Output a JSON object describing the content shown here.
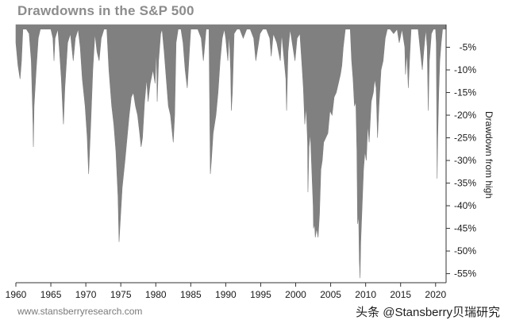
{
  "chart_data": {
    "type": "area",
    "title": "Drawdowns in the S&P 500",
    "ylabel": "Drawdown from high",
    "xlabel": "",
    "xlim": [
      1960,
      2021.5
    ],
    "ylim": [
      -57,
      0
    ],
    "x_ticks": [
      1960,
      1965,
      1970,
      1975,
      1980,
      1985,
      1990,
      1995,
      2000,
      2005,
      2010,
      2015,
      2020
    ],
    "y_ticks": [
      -5,
      -10,
      -15,
      -20,
      -25,
      -30,
      -35,
      -40,
      -45,
      -50,
      -55
    ],
    "y_tick_format": "{v}%",
    "grid": false,
    "fill_color": "#808080",
    "series": [
      {
        "points": [
          [
            1960.0,
            -4
          ],
          [
            1960.3,
            -9
          ],
          [
            1960.6,
            -12
          ],
          [
            1960.8,
            -8
          ],
          [
            1961.0,
            -1
          ],
          [
            1961.5,
            -1
          ],
          [
            1961.9,
            -2
          ],
          [
            1962.2,
            -8
          ],
          [
            1962.45,
            -22
          ],
          [
            1962.5,
            -27
          ],
          [
            1962.6,
            -18
          ],
          [
            1962.9,
            -10
          ],
          [
            1963.2,
            -3
          ],
          [
            1963.5,
            -1
          ],
          [
            1964.0,
            -1
          ],
          [
            1965.0,
            -1
          ],
          [
            1965.3,
            -3
          ],
          [
            1965.45,
            -8
          ],
          [
            1965.6,
            -3
          ],
          [
            1966.0,
            -1
          ],
          [
            1966.2,
            -5
          ],
          [
            1966.5,
            -12
          ],
          [
            1966.8,
            -22
          ],
          [
            1967.0,
            -14
          ],
          [
            1967.4,
            -4
          ],
          [
            1967.8,
            -2
          ],
          [
            1968.2,
            -8
          ],
          [
            1968.5,
            -3
          ],
          [
            1968.9,
            -1
          ],
          [
            1969.2,
            -5
          ],
          [
            1969.5,
            -12
          ],
          [
            1969.9,
            -18
          ],
          [
            1970.2,
            -25
          ],
          [
            1970.4,
            -33
          ],
          [
            1970.7,
            -22
          ],
          [
            1971.0,
            -10
          ],
          [
            1971.3,
            -2
          ],
          [
            1971.6,
            -6
          ],
          [
            1971.9,
            -8
          ],
          [
            1972.2,
            -3
          ],
          [
            1972.6,
            -1
          ],
          [
            1973.0,
            -1
          ],
          [
            1973.3,
            -10
          ],
          [
            1973.7,
            -18
          ],
          [
            1974.0,
            -22
          ],
          [
            1974.3,
            -28
          ],
          [
            1974.6,
            -38
          ],
          [
            1974.75,
            -48
          ],
          [
            1974.9,
            -44
          ],
          [
            1975.2,
            -36
          ],
          [
            1975.6,
            -30
          ],
          [
            1975.9,
            -25
          ],
          [
            1976.2,
            -20
          ],
          [
            1976.5,
            -16
          ],
          [
            1976.8,
            -15
          ],
          [
            1977.1,
            -18
          ],
          [
            1977.4,
            -20
          ],
          [
            1977.7,
            -24
          ],
          [
            1977.9,
            -27
          ],
          [
            1978.1,
            -25
          ],
          [
            1978.4,
            -17
          ],
          [
            1978.7,
            -12
          ],
          [
            1978.9,
            -17
          ],
          [
            1979.2,
            -13
          ],
          [
            1979.6,
            -10
          ],
          [
            1979.9,
            -13
          ],
          [
            1980.1,
            -5
          ],
          [
            1980.2,
            -17
          ],
          [
            1980.4,
            -8
          ],
          [
            1980.7,
            -2
          ],
          [
            1980.9,
            -1
          ],
          [
            1981.2,
            -6
          ],
          [
            1981.5,
            -12
          ],
          [
            1981.8,
            -18
          ],
          [
            1982.1,
            -20
          ],
          [
            1982.5,
            -26
          ],
          [
            1982.7,
            -20
          ],
          [
            1982.9,
            -4
          ],
          [
            1983.2,
            -1
          ],
          [
            1983.6,
            -1
          ],
          [
            1983.9,
            -4
          ],
          [
            1984.2,
            -10
          ],
          [
            1984.5,
            -14
          ],
          [
            1984.8,
            -6
          ],
          [
            1985.0,
            -1
          ],
          [
            1985.5,
            -1
          ],
          [
            1986.0,
            -1
          ],
          [
            1986.5,
            -3
          ],
          [
            1986.8,
            -8
          ],
          [
            1987.2,
            -1
          ],
          [
            1987.6,
            -1
          ],
          [
            1987.8,
            -33
          ],
          [
            1987.95,
            -30
          ],
          [
            1988.2,
            -24
          ],
          [
            1988.6,
            -20
          ],
          [
            1988.9,
            -15
          ],
          [
            1989.2,
            -8
          ],
          [
            1989.5,
            -3
          ],
          [
            1989.8,
            -1
          ],
          [
            1990.0,
            -3
          ],
          [
            1990.3,
            -8
          ],
          [
            1990.5,
            -2
          ],
          [
            1990.7,
            -10
          ],
          [
            1990.8,
            -19
          ],
          [
            1990.95,
            -15
          ],
          [
            1991.2,
            -2
          ],
          [
            1991.6,
            -1
          ],
          [
            1992.0,
            -1
          ],
          [
            1992.5,
            -3
          ],
          [
            1993.0,
            -1
          ],
          [
            1993.5,
            -1
          ],
          [
            1994.0,
            -3
          ],
          [
            1994.3,
            -8
          ],
          [
            1994.6,
            -5
          ],
          [
            1994.9,
            -2
          ],
          [
            1995.3,
            -1
          ],
          [
            1995.8,
            -1
          ],
          [
            1996.3,
            -3
          ],
          [
            1996.5,
            -7
          ],
          [
            1996.8,
            -2
          ],
          [
            1997.3,
            -4
          ],
          [
            1997.8,
            -8
          ],
          [
            1998.0,
            -2
          ],
          [
            1998.6,
            -12
          ],
          [
            1998.7,
            -19
          ],
          [
            1998.9,
            -6
          ],
          [
            1999.2,
            -1
          ],
          [
            1999.6,
            -5
          ],
          [
            1999.9,
            -8
          ],
          [
            2000.2,
            -3
          ],
          [
            2000.6,
            -2
          ],
          [
            2000.9,
            -9
          ],
          [
            2001.1,
            -14
          ],
          [
            2001.3,
            -22
          ],
          [
            2001.5,
            -18
          ],
          [
            2001.7,
            -26
          ],
          [
            2001.75,
            -37
          ],
          [
            2001.9,
            -27
          ],
          [
            2002.1,
            -24
          ],
          [
            2002.3,
            -32
          ],
          [
            2002.5,
            -40
          ],
          [
            2002.55,
            -45
          ],
          [
            2002.7,
            -44
          ],
          [
            2002.8,
            -47
          ],
          [
            2003.0,
            -45
          ],
          [
            2003.2,
            -47
          ],
          [
            2003.4,
            -42
          ],
          [
            2003.6,
            -32
          ],
          [
            2003.8,
            -30
          ],
          [
            2004.0,
            -26
          ],
          [
            2004.3,
            -25
          ],
          [
            2004.6,
            -24
          ],
          [
            2004.9,
            -19
          ],
          [
            2005.2,
            -20
          ],
          [
            2005.5,
            -16
          ],
          [
            2005.8,
            -15
          ],
          [
            2006.1,
            -13
          ],
          [
            2006.4,
            -11
          ],
          [
            2006.6,
            -9
          ],
          [
            2006.8,
            -5
          ],
          [
            2007.1,
            -1
          ],
          [
            2007.5,
            -1
          ],
          [
            2007.8,
            -1
          ],
          [
            2008.0,
            -8
          ],
          [
            2008.2,
            -12
          ],
          [
            2008.4,
            -18
          ],
          [
            2008.6,
            -17
          ],
          [
            2008.75,
            -28
          ],
          [
            2008.85,
            -44
          ],
          [
            2009.0,
            -42
          ],
          [
            2009.1,
            -52
          ],
          [
            2009.2,
            -56
          ],
          [
            2009.3,
            -48
          ],
          [
            2009.5,
            -40
          ],
          [
            2009.7,
            -32
          ],
          [
            2009.9,
            -28
          ],
          [
            2010.1,
            -30
          ],
          [
            2010.3,
            -22
          ],
          [
            2010.5,
            -26
          ],
          [
            2010.8,
            -17
          ],
          [
            2011.1,
            -15
          ],
          [
            2011.3,
            -12
          ],
          [
            2011.5,
            -14
          ],
          [
            2011.7,
            -25
          ],
          [
            2011.9,
            -18
          ],
          [
            2012.2,
            -10
          ],
          [
            2012.5,
            -8
          ],
          [
            2012.8,
            -3
          ],
          [
            2013.1,
            -1
          ],
          [
            2013.5,
            -1
          ],
          [
            2014.0,
            -2
          ],
          [
            2014.5,
            -1
          ],
          [
            2014.8,
            -4
          ],
          [
            2015.2,
            -1
          ],
          [
            2015.6,
            -5
          ],
          [
            2015.7,
            -11
          ],
          [
            2015.9,
            -6
          ],
          [
            2016.1,
            -14
          ],
          [
            2016.3,
            -7
          ],
          [
            2016.5,
            -1
          ],
          [
            2017.0,
            -1
          ],
          [
            2017.5,
            -1
          ],
          [
            2018.1,
            -10
          ],
          [
            2018.3,
            -6
          ],
          [
            2018.6,
            -1
          ],
          [
            2018.8,
            -5
          ],
          [
            2018.95,
            -19
          ],
          [
            2019.1,
            -8
          ],
          [
            2019.4,
            -2
          ],
          [
            2019.7,
            -1
          ],
          [
            2020.0,
            -1
          ],
          [
            2020.1,
            -4
          ],
          [
            2020.22,
            -34
          ],
          [
            2020.3,
            -25
          ],
          [
            2020.45,
            -15
          ],
          [
            2020.6,
            -8
          ],
          [
            2020.8,
            -4
          ],
          [
            2021.0,
            -1
          ],
          [
            2021.2,
            -1
          ],
          [
            2021.5,
            -1
          ]
        ]
      }
    ]
  },
  "footer": {
    "source": "www.stansberryresearch.com",
    "watermark": "头条 @Stansberry贝瑞研究"
  }
}
